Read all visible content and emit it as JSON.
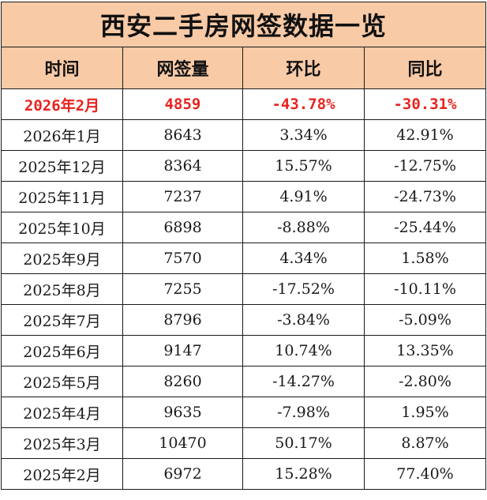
{
  "title": "西安二手房网签数据一览",
  "headers": [
    "时间",
    "网签量",
    "环比",
    "同比"
  ],
  "colors": {
    "header_bg": "#f8caa6",
    "highlight_text": "#e8231e",
    "border": "#1a1a1a"
  },
  "rows": [
    {
      "period": "2026年2月",
      "signed": "4859",
      "mom": "-43.78%",
      "yoy": "-30.31%"
    },
    {
      "period": "2026年1月",
      "signed": "8643",
      "mom": "3.34%",
      "yoy": "42.91%"
    },
    {
      "period": "2025年12月",
      "signed": "8364",
      "mom": "15.57%",
      "yoy": "-12.75%"
    },
    {
      "period": "2025年11月",
      "signed": "7237",
      "mom": "4.91%",
      "yoy": "-24.73%"
    },
    {
      "period": "2025年10月",
      "signed": "6898",
      "mom": "-8.88%",
      "yoy": "-25.44%"
    },
    {
      "period": "2025年9月",
      "signed": "7570",
      "mom": "4.34%",
      "yoy": "1.58%"
    },
    {
      "period": "2025年8月",
      "signed": "7255",
      "mom": "-17.52%",
      "yoy": "-10.11%"
    },
    {
      "period": "2025年7月",
      "signed": "8796",
      "mom": "-3.84%",
      "yoy": "-5.09%"
    },
    {
      "period": "2025年6月",
      "signed": "9147",
      "mom": "10.74%",
      "yoy": "13.35%"
    },
    {
      "period": "2025年5月",
      "signed": "8260",
      "mom": "-14.27%",
      "yoy": "-2.80%"
    },
    {
      "period": "2025年4月",
      "signed": "9635",
      "mom": "-7.98%",
      "yoy": "1.95%"
    },
    {
      "period": "2025年3月",
      "signed": "10470",
      "mom": "50.17%",
      "yoy": "8.87%"
    },
    {
      "period": "2025年2月",
      "signed": "6972",
      "mom": "15.28%",
      "yoy": "77.40%"
    }
  ]
}
